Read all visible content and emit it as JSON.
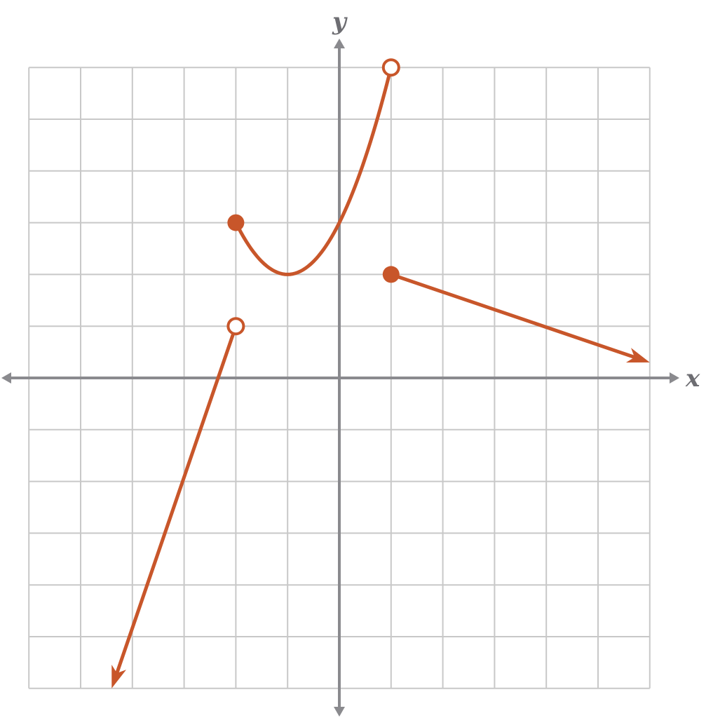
{
  "chart_data": {
    "type": "line",
    "title": "",
    "xlabel": "x",
    "ylabel": "y",
    "xlim": [
      -6,
      6
    ],
    "ylim": [
      -6,
      6
    ],
    "grid": true,
    "series_color": "#c8562a",
    "axis_color": "#8a8a8e",
    "grid_color": "#c8c8c8",
    "pieces": [
      {
        "kind": "ray",
        "points": [
          [
            -2,
            1
          ],
          [
            -4.4,
            -6
          ]
        ],
        "start_marker": "open",
        "end_marker": "arrow"
      },
      {
        "kind": "curve",
        "function": "quadratic",
        "vertex": [
          -1,
          2
        ],
        "passes_through": [
          [
            -2,
            3
          ],
          [
            0,
            3
          ],
          [
            1,
            6
          ]
        ],
        "domain": [
          -2,
          1
        ],
        "start_marker": "closed",
        "end_marker": "open"
      },
      {
        "kind": "ray",
        "points": [
          [
            1,
            2
          ],
          [
            6,
            0.3
          ]
        ],
        "start_marker": "closed",
        "end_marker": "arrow"
      }
    ]
  }
}
